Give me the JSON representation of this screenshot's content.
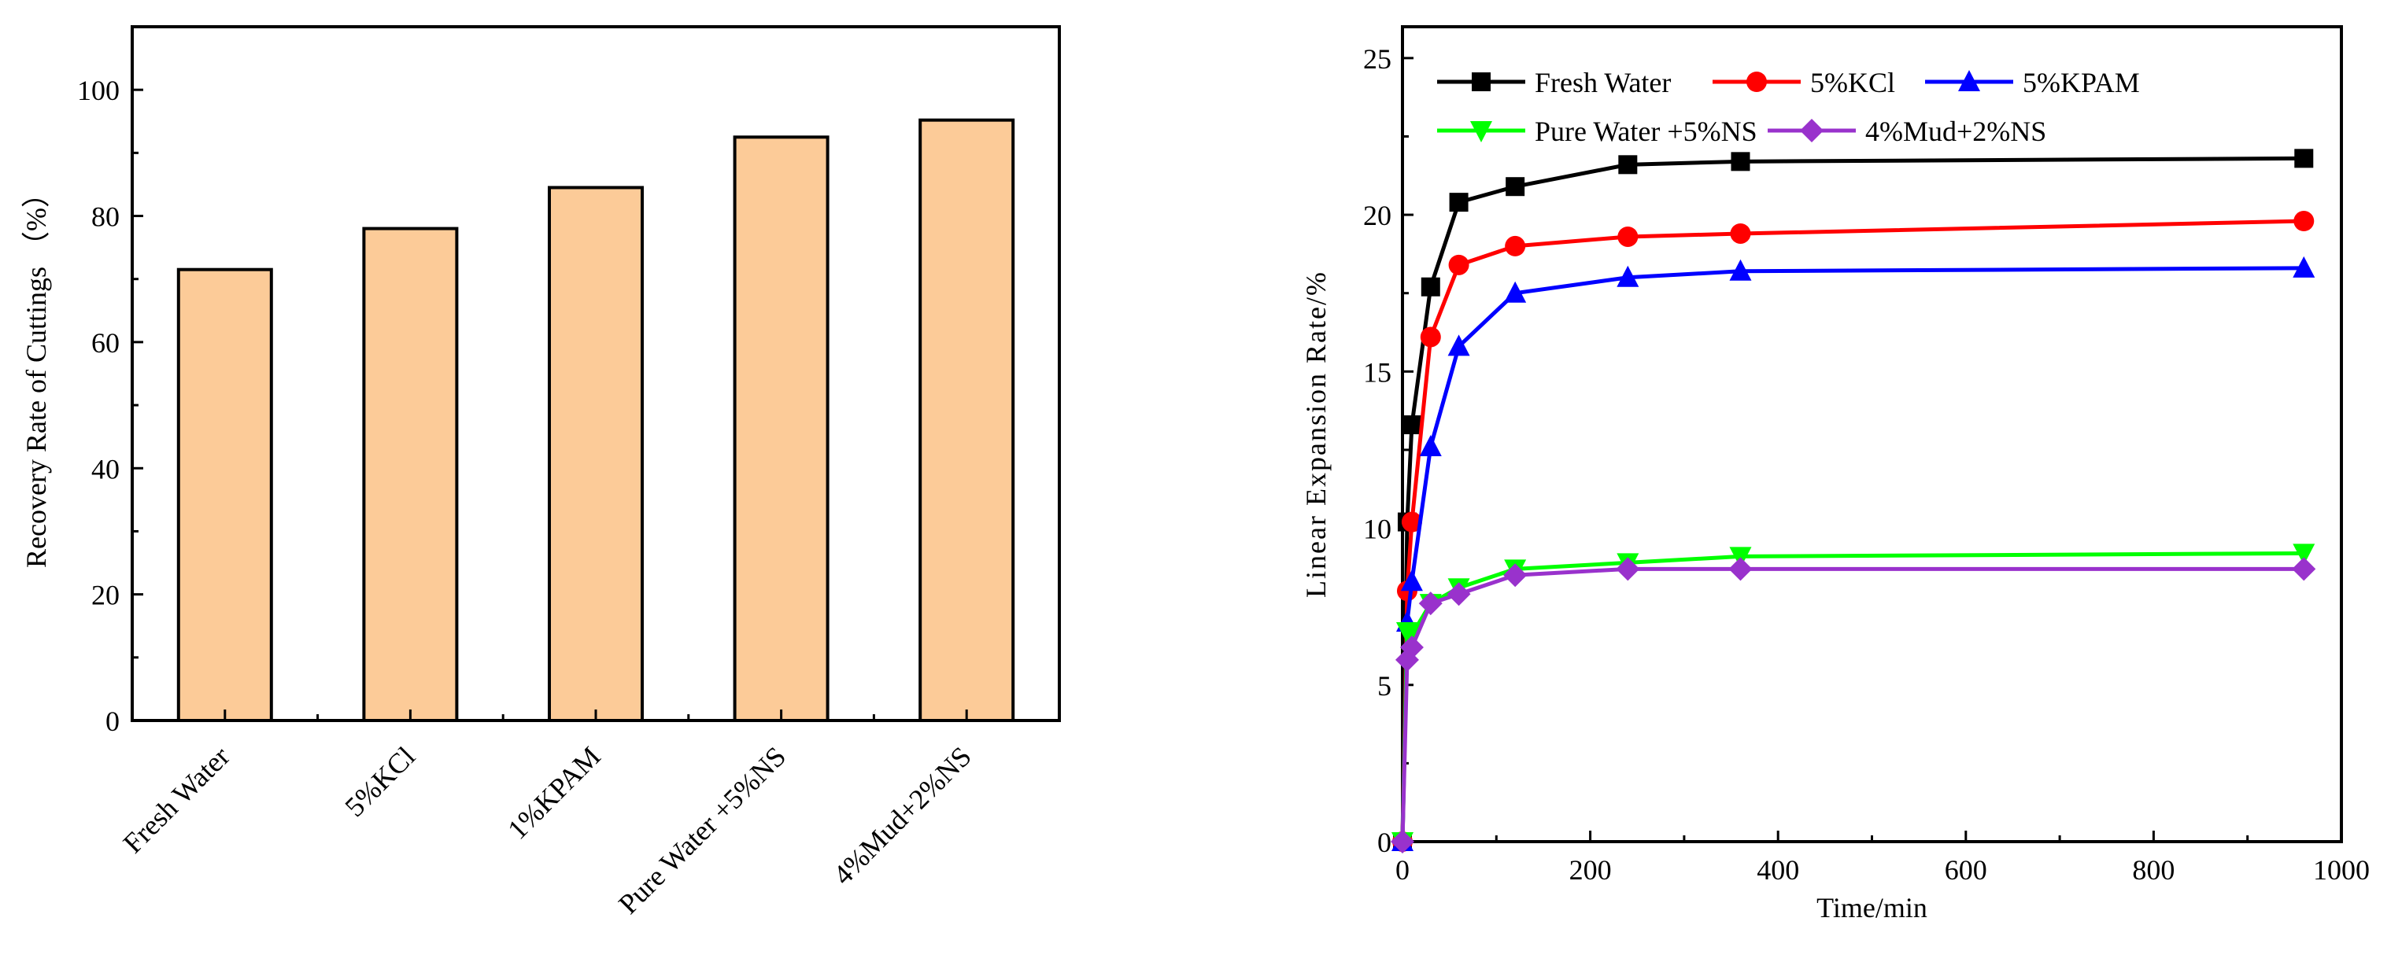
{
  "chart_data": [
    {
      "type": "bar",
      "title": "",
      "categories": [
        "Fresh Water",
        "5%KCl",
        "1%KPAM",
        "Pure Water +5%NS",
        "4%Mud+2%NS"
      ],
      "values": [
        71.5,
        78,
        84.5,
        92.5,
        95.2
      ],
      "xlabel": "",
      "ylabel": "Recovery Rate of Cuttings （%）",
      "ylim": [
        0,
        110
      ],
      "yticks": [
        0,
        20,
        40,
        60,
        80,
        100
      ],
      "ytick_labels": [
        "0",
        "20",
        "40",
        "60",
        "80",
        "100"
      ],
      "bar_color": "#FCCB98",
      "grid": false
    },
    {
      "type": "line",
      "title": "",
      "xlabel": "Time/min",
      "ylabel": "Linear Expansion Rate/%",
      "xlim": [
        0,
        1000
      ],
      "ylim": [
        0,
        26
      ],
      "xticks": [
        0,
        200,
        400,
        600,
        800,
        1000
      ],
      "xtick_labels": [
        "0",
        "200",
        "400",
        "600",
        "800",
        "1000"
      ],
      "yticks": [
        0,
        5,
        10,
        15,
        20,
        25
      ],
      "ytick_labels": [
        "0",
        "5",
        "10",
        "15",
        "20",
        "25"
      ],
      "legend_position": "top-left",
      "grid": false,
      "series": [
        {
          "name": "Fresh Water",
          "color": "#000000",
          "marker": "square",
          "x": [
            0,
            5,
            10,
            30,
            60,
            120,
            240,
            360,
            960
          ],
          "y": [
            0,
            10.2,
            13.3,
            17.7,
            20.4,
            20.9,
            21.6,
            21.7,
            21.8
          ]
        },
        {
          "name": "5%KCl",
          "color": "#FF0000",
          "marker": "circle",
          "x": [
            0,
            5,
            10,
            30,
            60,
            120,
            240,
            360,
            960
          ],
          "y": [
            0,
            8.0,
            10.2,
            16.1,
            18.4,
            19.0,
            19.3,
            19.4,
            19.8
          ]
        },
        {
          "name": "5%KPAM",
          "color": "#0000FF",
          "marker": "triangle-up",
          "x": [
            0,
            5,
            10,
            30,
            60,
            120,
            240,
            360,
            960
          ],
          "y": [
            0,
            7.0,
            8.3,
            12.6,
            15.8,
            17.5,
            18.0,
            18.2,
            18.3
          ]
        },
        {
          "name": "Pure Water +5%NS",
          "color": "#00FF00",
          "marker": "triangle-down",
          "x": [
            0,
            5,
            10,
            30,
            60,
            120,
            240,
            360,
            960
          ],
          "y": [
            0,
            6.7,
            6.6,
            7.6,
            8.1,
            8.7,
            8.9,
            9.1,
            9.2
          ]
        },
        {
          "name": "4%Mud+2%NS",
          "color": "#9932CC",
          "marker": "diamond",
          "x": [
            0,
            5,
            10,
            30,
            60,
            120,
            240,
            360,
            960
          ],
          "y": [
            0,
            5.8,
            6.2,
            7.6,
            7.9,
            8.5,
            8.7,
            8.7,
            8.7
          ]
        }
      ]
    }
  ]
}
